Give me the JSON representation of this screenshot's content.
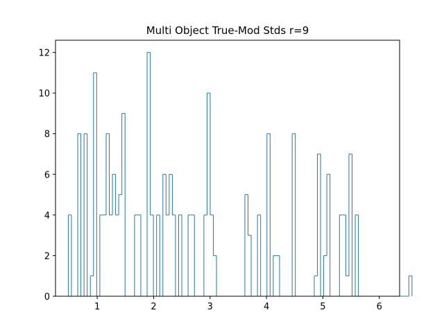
{
  "chart_data": {
    "type": "histogram-step",
    "title": "Multi Object True-Mod Stds r=9",
    "xlabel": "",
    "ylabel": "",
    "xlim": [
      0.26,
      6.36
    ],
    "ylim": [
      0,
      12.6
    ],
    "xticks": [
      1,
      2,
      3,
      4,
      5,
      6
    ],
    "yticks": [
      0,
      2,
      4,
      6,
      8,
      10,
      12
    ],
    "grid": false,
    "series": [
      {
        "color": "#1f77b4",
        "bin_width": 0.0559,
        "bin_start": 0.4865,
        "counts": [
          4,
          0,
          0,
          8,
          0,
          8,
          0,
          1,
          11,
          0,
          4,
          4,
          8,
          4,
          6,
          4,
          5,
          9,
          0,
          0,
          0,
          4,
          4,
          0,
          0,
          12,
          4,
          0,
          4,
          0,
          6,
          4,
          6,
          4,
          0,
          4,
          0,
          0,
          4,
          4,
          0,
          0,
          0,
          4,
          10,
          4,
          2,
          0,
          0,
          0,
          0,
          0,
          0,
          0,
          0,
          0,
          5,
          3,
          0,
          0,
          4,
          0,
          0,
          8,
          0,
          2,
          2,
          0,
          0,
          0,
          0,
          8,
          0,
          0,
          0,
          0,
          0,
          0,
          1,
          7,
          0,
          2,
          6,
          0,
          0,
          0,
          4,
          4,
          1,
          7,
          0,
          4,
          0,
          0,
          0,
          0,
          0,
          0,
          0,
          0,
          0,
          0,
          0,
          0,
          0,
          0,
          0,
          0,
          1
        ]
      }
    ]
  }
}
